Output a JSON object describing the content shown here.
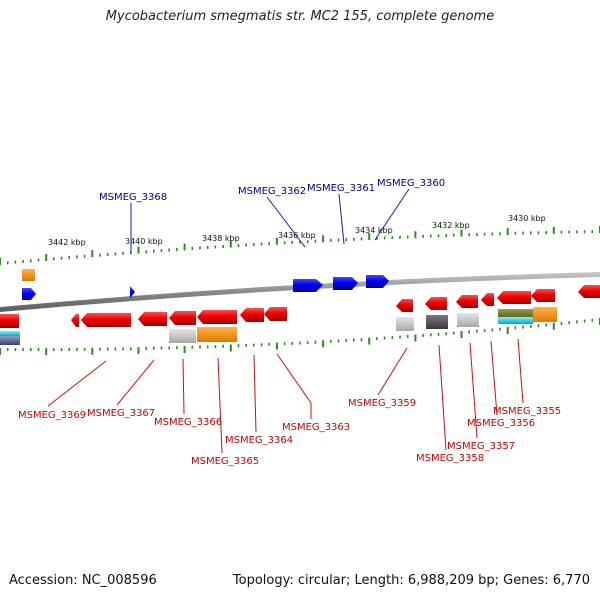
{
  "title": "Mycobacterium smegmatis str. MC2 155, complete genome",
  "footer": {
    "accession": "Accession: NC_008596",
    "summary": "Topology: circular; Length: 6,988,209 bp; Genes: 6,770"
  },
  "colors": {
    "forward_gene": "#0000dd",
    "reverse_gene": "#e80000",
    "backbone": "#8a8a8a",
    "tick": "#2e8b22",
    "forward_label": "#000099",
    "reverse_label": "#cc0000"
  },
  "scale_labels": [
    "3442 kbp",
    "3440 kbp",
    "3438 kbp",
    "3436 kbp",
    "3434 kbp",
    "3432 kbp",
    "3430 kbp"
  ],
  "forward_labels": [
    "MSMEG_3368",
    "MSMEG_3362",
    "MSMEG_3361",
    "MSMEG_3360"
  ],
  "reverse_labels": [
    "MSMEG_3369",
    "MSMEG_3367",
    "MSMEG_3366",
    "MSMEG_3365",
    "MSMEG_3364",
    "MSMEG_3363",
    "MSMEG_3359",
    "MSMEG_3358",
    "MSMEG_3357",
    "MSMEG_3356",
    "MSMEG_3355"
  ]
}
